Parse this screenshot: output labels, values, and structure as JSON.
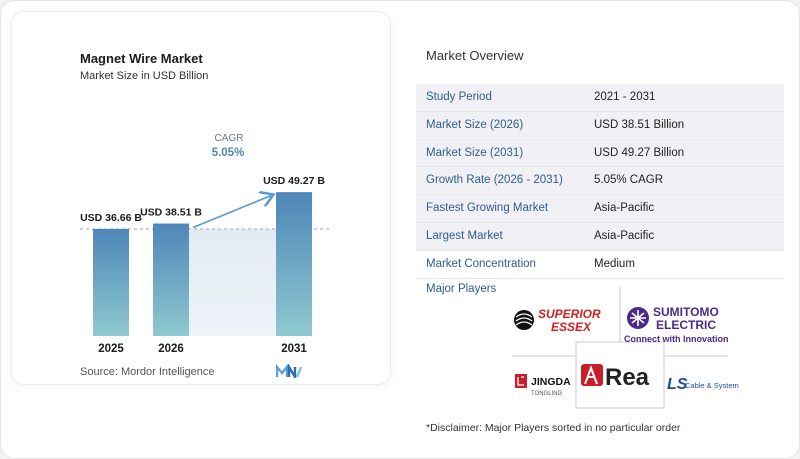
{
  "chart_data": {
    "type": "bar",
    "title": "Magnet Wire Market",
    "subtitle": "Market Size in USD Billion",
    "categories": [
      "2025",
      "2026",
      "2031"
    ],
    "values": [
      36.66,
      38.51,
      49.27
    ],
    "value_labels": [
      "USD 36.66 B",
      "USD 38.51 B",
      "USD 49.27 B"
    ],
    "cagr_label": "CAGR",
    "cagr_value": "5.05%",
    "ylim": [
      0,
      52
    ],
    "colors": {
      "bar_top": "#4e86b8",
      "bar_bottom": "#8fc9d0",
      "accent": "#5a9ad1",
      "baseline_band": "#e4ecf4"
    }
  },
  "source": "Source:  Mordor Intelligence",
  "overview": {
    "title": "Market Overview",
    "rows": [
      {
        "label": "Study Period",
        "value": "2021 - 2031"
      },
      {
        "label": "Market Size (2026)",
        "value": "USD 38.51 Billion"
      },
      {
        "label": "Market Size (2031)",
        "value": "USD 49.27 Billion"
      },
      {
        "label": "Growth Rate (2026 - 2031)",
        "value": "5.05% CAGR"
      },
      {
        "label": "Fastest Growing Market",
        "value": "Asia-Pacific"
      },
      {
        "label": "Largest Market",
        "value": "Asia-Pacific"
      },
      {
        "label": "Market Concentration",
        "value": "Medium"
      }
    ]
  },
  "players": {
    "label": "Major Players",
    "superior_essex": [
      "SUPERIOR",
      "ESSEX"
    ],
    "sumitomo": [
      "SUMITOMO",
      "ELECTRIC"
    ],
    "sumitomo_tagline": "Connect with Innovation",
    "jingda": [
      "JINGDA",
      "TONGLING"
    ],
    "rea": "Rea",
    "ls": "LS",
    "ls_tagline": "Cable & System"
  },
  "disclaimer": "*Disclaimer: Major Players sorted in no particular order"
}
